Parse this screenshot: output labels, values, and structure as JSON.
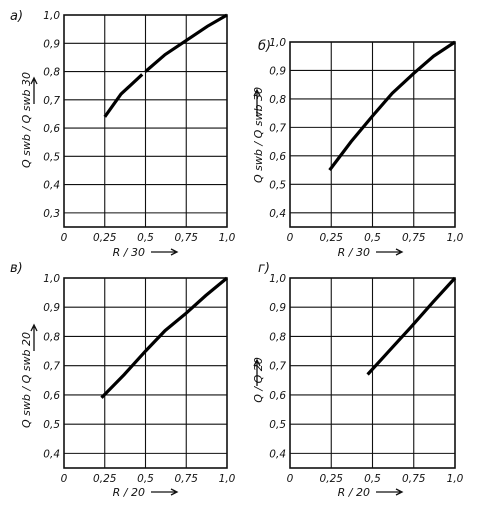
{
  "chart_data": [
    {
      "panel": "а)",
      "type": "line",
      "xlabel": "R / 30",
      "ylabel": "Q swb / Q swb 30",
      "x_origin_label": "0",
      "xticks": [
        "0,25",
        "0,5",
        "0,75",
        "1,0"
      ],
      "yticks": [
        "0,3",
        "0,4",
        "0,5",
        "0,6",
        "0,7",
        "0,8",
        "0,9",
        "1,0"
      ],
      "xlim": [
        0,
        1.0
      ],
      "ylim": [
        0.25,
        1.0
      ],
      "grid": true,
      "series": [
        {
          "x": [
            0.25,
            0.35,
            0.48
          ],
          "y": [
            0.64,
            0.72,
            0.79
          ]
        },
        {
          "x": [
            0.5,
            0.62,
            0.75,
            0.88,
            1.0
          ],
          "y": [
            0.8,
            0.86,
            0.91,
            0.96,
            1.0
          ]
        }
      ]
    },
    {
      "panel": "б)",
      "type": "line",
      "xlabel": "R / 30",
      "ylabel": "Q swb / Q swb 30",
      "x_origin_label": "0",
      "xticks": [
        "0,25",
        "0,5",
        "0,75",
        "1,0"
      ],
      "yticks": [
        "0,4",
        "0,5",
        "0,6",
        "0,7",
        "0,8",
        "0,9",
        "1,0"
      ],
      "xlim": [
        0,
        1.0
      ],
      "ylim": [
        0.35,
        1.0
      ],
      "grid": true,
      "series": [
        {
          "x": [
            0.24,
            0.37,
            0.5,
            0.62,
            0.75,
            0.87,
            1.0
          ],
          "y": [
            0.55,
            0.65,
            0.74,
            0.82,
            0.89,
            0.95,
            1.0
          ]
        }
      ]
    },
    {
      "panel": "в)",
      "type": "line",
      "xlabel": "R / 20",
      "ylabel": "Q swb / Q swb 20",
      "x_origin_label": "0",
      "xticks": [
        "0,25",
        "0,5",
        "0,75",
        "1,0"
      ],
      "yticks": [
        "0,4",
        "0,5",
        "0,6",
        "0,7",
        "0,8",
        "0,9",
        "1,0"
      ],
      "xlim": [
        0,
        1.0
      ],
      "ylim": [
        0.35,
        1.0
      ],
      "grid": true,
      "series": [
        {
          "x": [
            0.23,
            0.37,
            0.5,
            0.62,
            0.75,
            0.87,
            1.0
          ],
          "y": [
            0.59,
            0.67,
            0.75,
            0.82,
            0.88,
            0.94,
            1.0
          ]
        }
      ]
    },
    {
      "panel": "г)",
      "type": "line",
      "xlabel": "R / 20",
      "ylabel": "Q / Q 20",
      "x_origin_label": "0",
      "xticks": [
        "0,25",
        "0,5",
        "0,75",
        "1,0"
      ],
      "yticks": [
        "0,4",
        "0,5",
        "0,6",
        "0,7",
        "0,8",
        "0,9",
        "1,0"
      ],
      "xlim": [
        0,
        1.0
      ],
      "ylim": [
        0.35,
        1.0
      ],
      "grid": true,
      "series": [
        {
          "x": [
            0.47,
            0.6,
            0.73,
            0.87,
            1.0
          ],
          "y": [
            0.67,
            0.75,
            0.83,
            0.92,
            1.0
          ]
        }
      ]
    }
  ]
}
